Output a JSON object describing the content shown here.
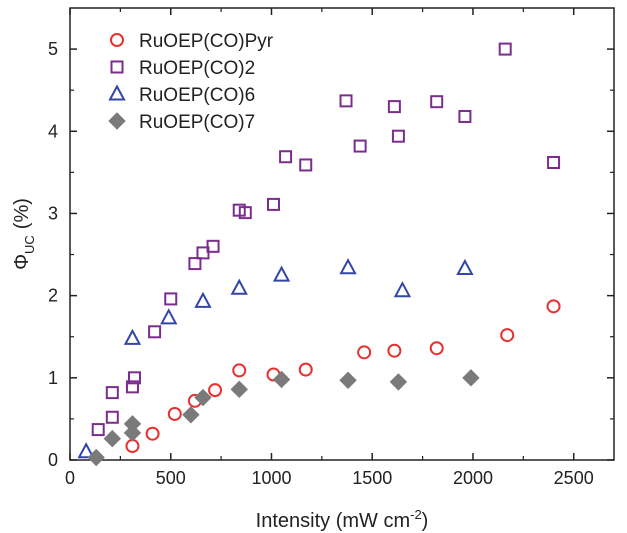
{
  "chart_data": {
    "type": "scatter",
    "xlabel": "Intensity (mW cm",
    "xlabel_sup": "-2",
    "xlabel_close": ")",
    "ylabel_main": "Φ",
    "ylabel_sub": "UC",
    "ylabel_unit": "(%)",
    "xlim": [
      0,
      2700
    ],
    "ylim": [
      0,
      5.5
    ],
    "x_ticks": [
      0,
      500,
      1000,
      1500,
      2000,
      2500
    ],
    "y_ticks": [
      0,
      1,
      2,
      3,
      4,
      5
    ],
    "legend_position": "top-left",
    "series": [
      {
        "name": "RuOEP(CO)Pyr",
        "marker": "circle",
        "color": "#e8312f",
        "x": [
          310,
          410,
          520,
          620,
          720,
          840,
          1010,
          1170,
          1460,
          1610,
          1820,
          2170,
          2400
        ],
        "y": [
          0.17,
          0.32,
          0.56,
          0.72,
          0.85,
          1.09,
          1.04,
          1.1,
          1.31,
          1.33,
          1.36,
          1.52,
          1.87
        ]
      },
      {
        "name": "RuOEP(CO)2",
        "marker": "square",
        "color": "#7b2d8e",
        "x": [
          140,
          210,
          210,
          310,
          320,
          420,
          500,
          620,
          660,
          710,
          840,
          870,
          1010,
          1070,
          1170,
          1370,
          1440,
          1610,
          1630,
          1820,
          1960,
          2160,
          2400
        ],
        "y": [
          0.37,
          0.52,
          0.82,
          0.89,
          1.0,
          1.56,
          1.96,
          2.39,
          2.52,
          2.6,
          3.04,
          3.01,
          3.11,
          3.69,
          3.59,
          4.37,
          3.82,
          4.3,
          3.94,
          4.36,
          4.18,
          5.0,
          3.62
        ]
      },
      {
        "name": "RuOEP(CO)6",
        "marker": "triangle",
        "color": "#3246a8",
        "x": [
          80,
          310,
          490,
          660,
          840,
          1050,
          1380,
          1650,
          1960
        ],
        "y": [
          0.1,
          1.48,
          1.73,
          1.93,
          2.09,
          2.25,
          2.34,
          2.06,
          2.33
        ]
      },
      {
        "name": "RuOEP(CO)7",
        "marker": "diamond",
        "color": "#7a7a7a",
        "x": [
          130,
          210,
          310,
          310,
          600,
          660,
          840,
          1050,
          1380,
          1630,
          1990
        ],
        "y": [
          0.03,
          0.26,
          0.44,
          0.33,
          0.55,
          0.76,
          0.86,
          0.98,
          0.97,
          0.95,
          1.0
        ]
      }
    ]
  }
}
